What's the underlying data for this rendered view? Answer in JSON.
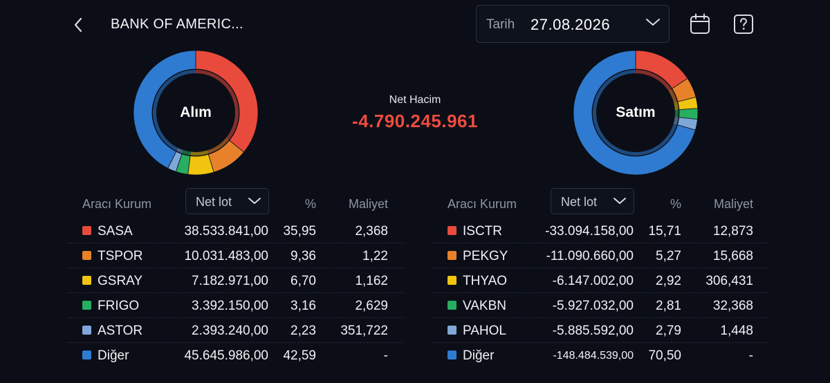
{
  "header": {
    "title": "BANK OF AMERIC...",
    "date_label": "Tarih",
    "date_value": "27.08.2026"
  },
  "icons": {
    "back": "chevron-left-icon",
    "date_dropdown": "chevron-down-icon",
    "calendar": "calendar-icon",
    "help": "help-icon"
  },
  "net_volume": {
    "label": "Net Hacim",
    "value": "-4.790.245.961"
  },
  "colors": {
    "red": "#e84b3c",
    "orange": "#e8822a",
    "yellow": "#f1c40f",
    "green": "#27ae60",
    "lightblue": "#7fa8d8",
    "blue": "#2f7bd1",
    "negative": "#ef4b3f"
  },
  "buy": {
    "donut_label": "Alım",
    "columns": {
      "broker": "Aracı Kurum",
      "select": "Net lot",
      "pct": "%",
      "cost": "Maliyet"
    },
    "rows": [
      {
        "name": "SASA",
        "lot": "38.533.841,00",
        "pct": "35,95",
        "cost": "2,368",
        "color": "#e84b3c",
        "share": 35.95
      },
      {
        "name": "TSPOR",
        "lot": "10.031.483,00",
        "pct": "9,36",
        "cost": "1,22",
        "color": "#e8822a",
        "share": 9.36
      },
      {
        "name": "GSRAY",
        "lot": "7.182.971,00",
        "pct": "6,70",
        "cost": "1,162",
        "color": "#f1c40f",
        "share": 6.7
      },
      {
        "name": "FRIGO",
        "lot": "3.392.150,00",
        "pct": "3,16",
        "cost": "2,629",
        "color": "#27ae60",
        "share": 3.16
      },
      {
        "name": "ASTOR",
        "lot": "2.393.240,00",
        "pct": "2,23",
        "cost": "351,722",
        "color": "#7fa8d8",
        "share": 2.23
      },
      {
        "name": "Diğer",
        "lot": "45.645.986,00",
        "pct": "42,59",
        "cost": "-",
        "color": "#2f7bd1",
        "share": 42.59
      }
    ]
  },
  "sell": {
    "donut_label": "Satım",
    "columns": {
      "broker": "Aracı Kurum",
      "select": "Net lot",
      "pct": "%",
      "cost": "Maliyet"
    },
    "rows": [
      {
        "name": "ISCTR",
        "lot": "-33.094.158,00",
        "pct": "15,71",
        "cost": "12,873",
        "color": "#e84b3c",
        "share": 15.71
      },
      {
        "name": "PEKGY",
        "lot": "-11.090.660,00",
        "pct": "5,27",
        "cost": "15,668",
        "color": "#e8822a",
        "share": 5.27
      },
      {
        "name": "THYAO",
        "lot": "-6.147.002,00",
        "pct": "2,92",
        "cost": "306,431",
        "color": "#f1c40f",
        "share": 2.92
      },
      {
        "name": "VAKBN",
        "lot": "-5.927.032,00",
        "pct": "2,81",
        "cost": "32,368",
        "color": "#27ae60",
        "share": 2.81
      },
      {
        "name": "PAHOL",
        "lot": "-5.885.592,00",
        "pct": "2,79",
        "cost": "1,448",
        "color": "#7fa8d8",
        "share": 2.79
      },
      {
        "name": "Diğer",
        "lot": "-148.484.539,00",
        "pct": "70,50",
        "cost": "-",
        "color": "#2f7bd1",
        "share": 70.5
      }
    ]
  }
}
